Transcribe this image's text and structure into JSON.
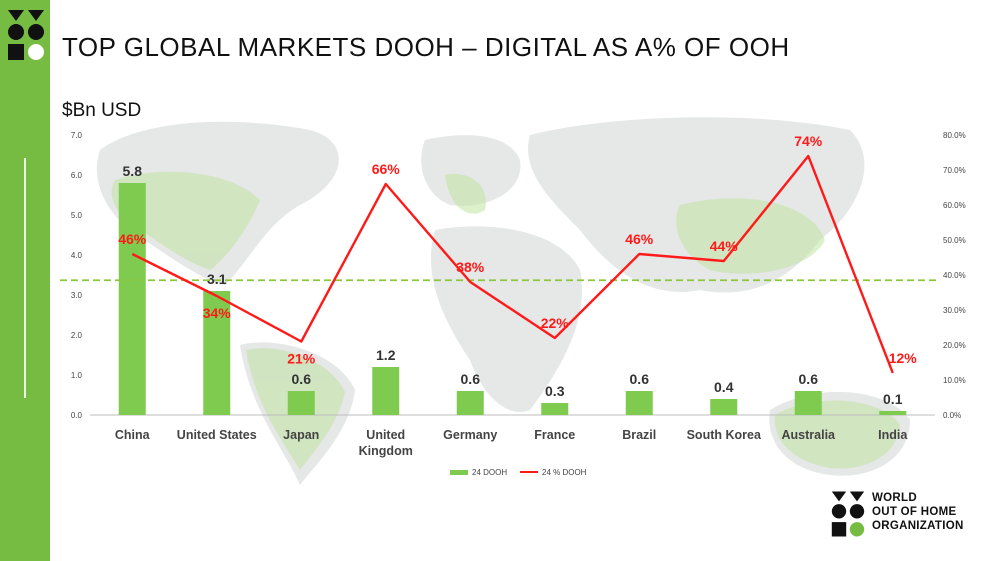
{
  "slide": {
    "title": "TOP GLOBAL MARKETS DOOH – DIGITAL AS A% OF OOH",
    "unit_label": "$Bn USD"
  },
  "brand": {
    "name": "WORLD OUT OF HOME ORGANIZATION",
    "text": "WORLD\nOUT OF HOME\nORGANIZATION"
  },
  "colors": {
    "accent_green": "#76bc42",
    "bar_green": "#7ecb4f",
    "line_red": "#ff1a1a",
    "reference_line": "#8cc63f"
  },
  "chart_data": {
    "type": "bar",
    "categories": [
      "China",
      "United States",
      "Japan",
      "United Kingdom",
      "Germany",
      "France",
      "Brazil",
      "South Korea",
      "Australia",
      "India"
    ],
    "category_labels": [
      [
        "China"
      ],
      [
        "United States"
      ],
      [
        "Japan"
      ],
      [
        "United",
        "Kingdom"
      ],
      [
        "Germany"
      ],
      [
        "France"
      ],
      [
        "Brazil"
      ],
      [
        "South Korea"
      ],
      [
        "Australia"
      ],
      [
        "India"
      ]
    ],
    "series": [
      {
        "name": "24 DOOH",
        "type": "bar",
        "axis": "left",
        "values": [
          5.8,
          3.1,
          0.6,
          1.2,
          0.6,
          0.3,
          0.6,
          0.4,
          0.6,
          0.1
        ],
        "labels": [
          "5.8",
          "3.1",
          "0.6",
          "1.2",
          "0.6",
          "0.3",
          "0.6",
          "0.4",
          "0.6",
          "0.1"
        ]
      },
      {
        "name": "24 % DOOH",
        "type": "line",
        "axis": "right",
        "values": [
          46,
          34,
          21,
          66,
          38,
          22,
          46,
          44,
          74,
          12
        ],
        "labels": [
          "46%",
          "34%",
          "21%",
          "66%",
          "38%",
          "22%",
          "46%",
          "44%",
          "74%",
          "12%"
        ]
      }
    ],
    "y_left": {
      "min": 0,
      "max": 7,
      "ticks": [
        "0.0",
        "1.0",
        "2.0",
        "3.0",
        "4.0",
        "5.0",
        "6.0",
        "7.0"
      ]
    },
    "y_right": {
      "min": 0,
      "max": 80,
      "ticks": [
        "0.0%",
        "10.0%",
        "20.0%",
        "30.0%",
        "40.0%",
        "50.0%",
        "60.0%",
        "70.0%",
        "80.0%"
      ]
    },
    "reference_line": {
      "axis": "right",
      "value": 38.5,
      "style": "dashed"
    },
    "legend": {
      "position": "bottom",
      "entries": [
        "24 DOOH",
        "24 % DOOH"
      ]
    },
    "background": "world-map"
  }
}
